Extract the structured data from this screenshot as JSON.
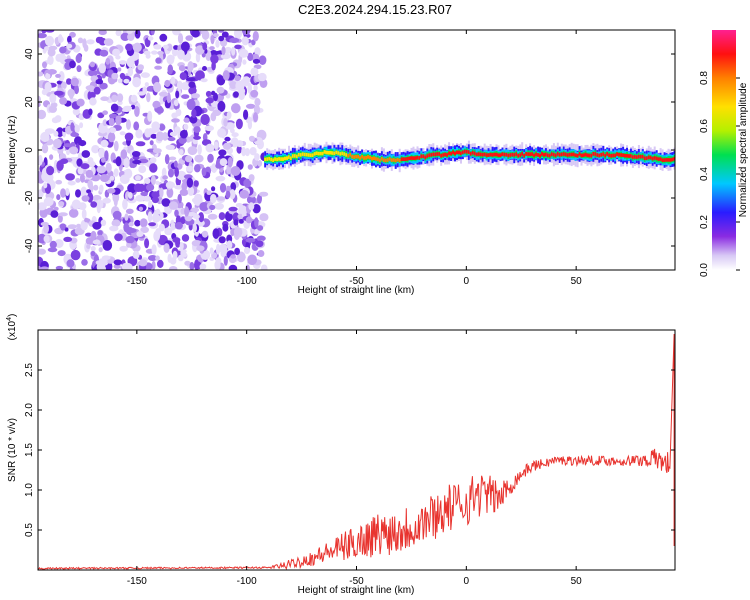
{
  "title": "C2E3.2024.294.15.23.R07",
  "chart_data": [
    {
      "type": "heatmap",
      "xlabel": "Height of straight line (km)",
      "ylabel": "Frequency (Hz)",
      "xlim": [
        -195,
        95
      ],
      "ylim": [
        -50,
        50
      ],
      "x_ticks": [
        -150,
        -100,
        -50,
        0,
        50
      ],
      "y_ticks": [
        -40,
        -20,
        0,
        20,
        40
      ],
      "noise_region_x": [
        -195,
        -92
      ],
      "ridge": {
        "x": [
          -92,
          -85,
          -80,
          -75,
          -70,
          -65,
          -60,
          -55,
          -50,
          -45,
          -40,
          -35,
          -30,
          -25,
          -20,
          -15,
          -10,
          -5,
          0,
          5,
          10,
          20,
          30,
          40,
          50,
          60,
          70,
          80,
          90,
          95
        ],
        "y": [
          -4,
          -4,
          -3,
          -2,
          -2,
          -1,
          -1,
          -2,
          -3,
          -3,
          -4,
          -4,
          -4,
          -3,
          -3,
          -2,
          -2,
          -1,
          -1,
          -2,
          -2,
          -2,
          -2,
          -2,
          -2,
          -2,
          -2,
          -3,
          -4,
          -4
        ],
        "amplitude": [
          0.5,
          0.55,
          0.6,
          0.6,
          0.65,
          0.7,
          0.7,
          0.75,
          0.8,
          0.85,
          0.9,
          0.9,
          0.9,
          0.92,
          0.95,
          0.95,
          0.95,
          0.97,
          0.98,
          0.98,
          0.98,
          0.99,
          1.0,
          1.0,
          1.0,
          1.0,
          1.0,
          1.0,
          1.0,
          1.0
        ]
      },
      "colorbar": {
        "label": "Normalized spectral amplitude",
        "range": [
          0,
          1
        ],
        "ticks": [
          "0.0",
          "0.2",
          "0.4",
          "0.6",
          "0.8"
        ]
      }
    },
    {
      "type": "line",
      "xlabel": "Height of straight line (km)",
      "ylabel": "SNR (10 * v/v)",
      "multiplier": "(x10",
      "multiplier_exp": "4",
      "xlim": [
        -195,
        95
      ],
      "ylim": [
        0,
        3
      ],
      "x_ticks": [
        -150,
        -100,
        -50,
        0,
        50
      ],
      "y_ticks": [
        0.5,
        1.0,
        1.5,
        2.0,
        2.5
      ],
      "y_tick_labels": [
        "0.5",
        "1.0",
        "1.5",
        "2.0",
        "2.5"
      ],
      "color": "#e8342f",
      "trend_x": [
        -195,
        -90,
        -82,
        -70,
        -60,
        -50,
        -40,
        -30,
        -20,
        -10,
        0,
        5,
        10,
        15,
        20,
        25,
        30,
        35,
        40,
        50,
        60,
        70,
        80,
        85,
        90,
        93
      ],
      "trend_y": [
        0.02,
        0.03,
        0.06,
        0.15,
        0.25,
        0.35,
        0.45,
        0.5,
        0.6,
        0.75,
        0.85,
        0.95,
        0.95,
        0.9,
        1.05,
        1.2,
        1.3,
        1.33,
        1.37,
        1.37,
        1.37,
        1.36,
        1.37,
        1.4,
        1.35,
        1.3
      ],
      "noise_amplitude": [
        0.01,
        0.01,
        0.05,
        0.1,
        0.15,
        0.22,
        0.28,
        0.3,
        0.3,
        0.3,
        0.3,
        0.3,
        0.25,
        0.2,
        0.12,
        0.08,
        0.07,
        0.06,
        0.06,
        0.06,
        0.06,
        0.06,
        0.08,
        0.12,
        0.15,
        0.18
      ],
      "edge_spike_y": 2.95
    }
  ]
}
